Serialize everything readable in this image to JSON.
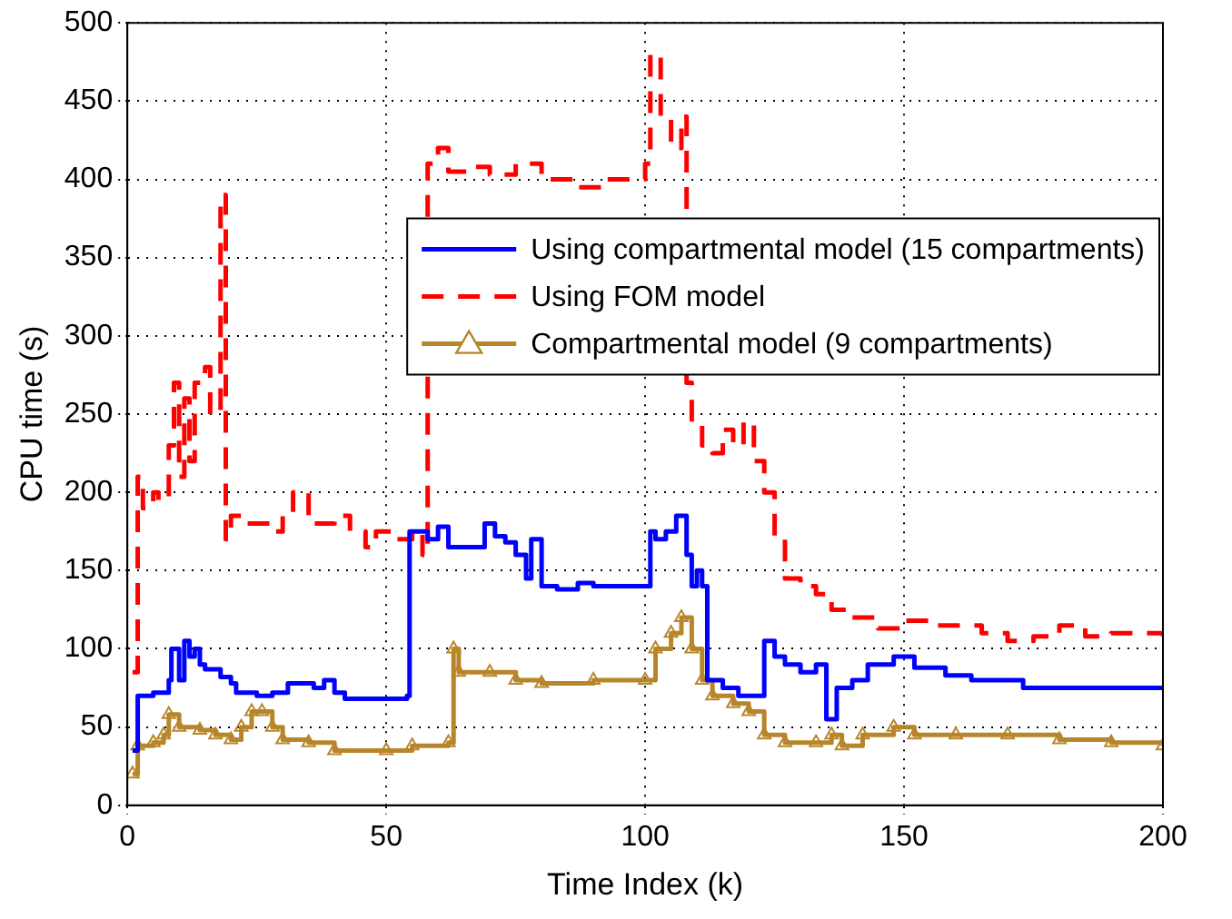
{
  "chart_data": {
    "type": "step",
    "xlabel": "Time Index (k)",
    "ylabel": "CPU time (s)",
    "xlim": [
      0,
      200
    ],
    "ylim": [
      0,
      500
    ],
    "xticks": [
      0,
      50,
      100,
      150,
      200
    ],
    "yticks": [
      0,
      50,
      100,
      150,
      200,
      250,
      300,
      350,
      400,
      450,
      500
    ],
    "grid": true,
    "legend": "right",
    "series": [
      {
        "name": "Using compartmental model (15 compartments)",
        "color": "#0000ff",
        "line_style": "solid",
        "marker": "none",
        "x": [
          1,
          2,
          5,
          8,
          8.5,
          10,
          11,
          12,
          13,
          14,
          15,
          18,
          20,
          21,
          25,
          28,
          31,
          34,
          36,
          38,
          40,
          42,
          50,
          54,
          54.5,
          58,
          60,
          62,
          67,
          69,
          71,
          73,
          75,
          77,
          78,
          80,
          83,
          87,
          90,
          100,
          101,
          102,
          104,
          106,
          108,
          109,
          110,
          111,
          112,
          115,
          118,
          122,
          123,
          125,
          127,
          130,
          133,
          135,
          137,
          140,
          143,
          148,
          152,
          158,
          163,
          170,
          173,
          200
        ],
        "values": [
          35,
          70,
          72,
          80,
          100,
          80,
          105,
          95,
          100,
          90,
          87,
          82,
          78,
          72,
          70,
          72,
          78,
          78,
          75,
          80,
          72,
          68,
          68,
          70,
          175,
          170,
          178,
          165,
          165,
          180,
          172,
          168,
          160,
          145,
          170,
          140,
          138,
          142,
          140,
          140,
          175,
          170,
          175,
          185,
          160,
          140,
          150,
          140,
          80,
          75,
          70,
          70,
          105,
          95,
          90,
          85,
          90,
          55,
          75,
          80,
          90,
          95,
          88,
          83,
          80,
          80,
          75,
          75
        ]
      },
      {
        "name": "Using FOM model",
        "color": "#ff0000",
        "line_style": "dashed",
        "marker": "none",
        "x": [
          1,
          2,
          3,
          5,
          6,
          8,
          9,
          10,
          11,
          12,
          13,
          15,
          16,
          18,
          19,
          20,
          23,
          26,
          28,
          30,
          32,
          35,
          38,
          40,
          43,
          46,
          48,
          52,
          55,
          57,
          58,
          60,
          62,
          66,
          70,
          75,
          80,
          87,
          92,
          100,
          101,
          103,
          105,
          107,
          108,
          109,
          111,
          113,
          115,
          117,
          119,
          121,
          123,
          125,
          127,
          130,
          133,
          136,
          140,
          145,
          150,
          155,
          160,
          165,
          170,
          175,
          180,
          185,
          190,
          200
        ],
        "values": [
          85,
          210,
          190,
          200,
          195,
          230,
          270,
          210,
          260,
          220,
          270,
          280,
          250,
          390,
          170,
          185,
          180,
          180,
          175,
          185,
          200,
          180,
          180,
          185,
          175,
          165,
          175,
          170,
          175,
          160,
          410,
          420,
          405,
          408,
          403,
          410,
          400,
          395,
          400,
          410,
          480,
          440,
          420,
          440,
          270,
          245,
          230,
          225,
          240,
          230,
          245,
          220,
          200,
          170,
          145,
          140,
          135,
          125,
          120,
          113,
          118,
          115,
          115,
          110,
          105,
          108,
          115,
          108,
          110,
          108
        ]
      },
      {
        "name": "Compartmental model (9 compartments)",
        "color": "#b8862a",
        "line_style": "solid",
        "marker": "triangle",
        "x": [
          1,
          2,
          5,
          7,
          8,
          10,
          14,
          17,
          20,
          22,
          24,
          26,
          28,
          30,
          35,
          40,
          50,
          55,
          62,
          63,
          64,
          70,
          75,
          80,
          90,
          100,
          102,
          105,
          107,
          109,
          111,
          113,
          117,
          120,
          123,
          127,
          133,
          136,
          138,
          142,
          148,
          152,
          160,
          170,
          180,
          190,
          200
        ],
        "values": [
          20,
          38,
          40,
          45,
          58,
          50,
          48,
          45,
          42,
          50,
          60,
          60,
          50,
          42,
          40,
          35,
          35,
          38,
          40,
          100,
          85,
          85,
          80,
          78,
          80,
          80,
          100,
          110,
          120,
          100,
          80,
          70,
          65,
          60,
          45,
          40,
          40,
          45,
          38,
          45,
          50,
          45,
          45,
          45,
          42,
          40,
          38
        ]
      }
    ]
  }
}
